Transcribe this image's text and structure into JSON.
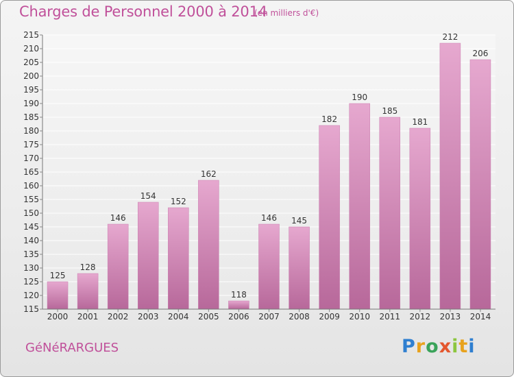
{
  "chart_data": {
    "type": "bar",
    "title": "Charges de Personnel 2000 à 2014",
    "subtitle": "(en milliers d'€)",
    "categories": [
      "2000",
      "2001",
      "2002",
      "2003",
      "2004",
      "2005",
      "2006",
      "2007",
      "2008",
      "2009",
      "2010",
      "2011",
      "2012",
      "2013",
      "2014"
    ],
    "values": [
      125,
      128,
      146,
      154,
      152,
      162,
      118,
      146,
      145,
      182,
      190,
      185,
      181,
      212,
      206
    ],
    "xlabel": "",
    "ylabel": "",
    "ylim": [
      115,
      215
    ],
    "ytick_step": 5,
    "grid": true,
    "bar_color": "#d98cbd"
  },
  "commune": "GéNéRARGUES",
  "brand": {
    "letters": [
      "P",
      "r",
      "o",
      "x",
      "i",
      "t",
      "i"
    ],
    "colors": [
      "#2f7fd0",
      "#e8a21d",
      "#3aa35a",
      "#e4572e",
      "#8cc63f",
      "#e8a21d",
      "#2f7fd0"
    ]
  }
}
